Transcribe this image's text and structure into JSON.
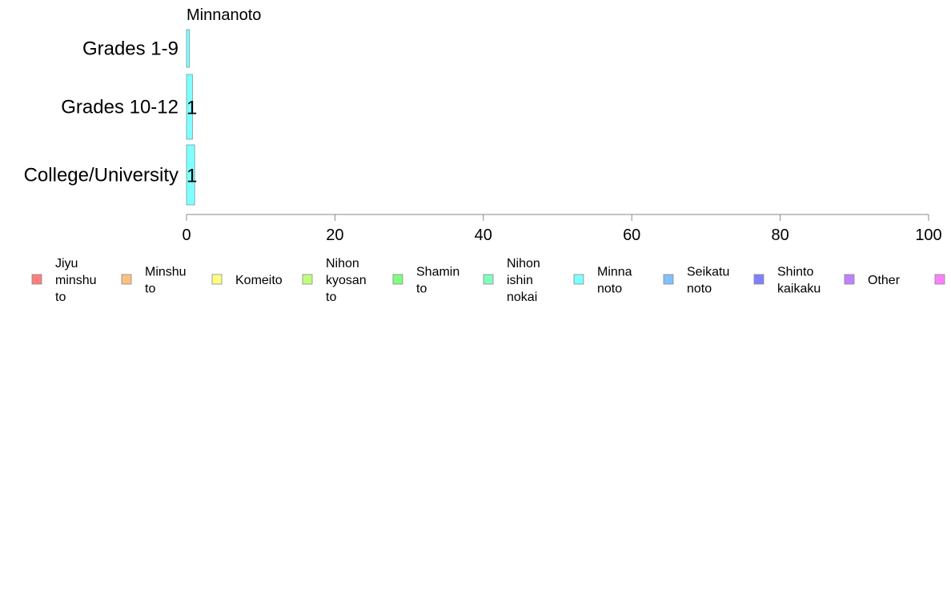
{
  "chart_data": {
    "type": "bar",
    "orientation": "horizontal",
    "stacked": true,
    "title": "Minnanoto",
    "categories": [
      "Grades 1-9",
      "Grades 10-12",
      "College/University"
    ],
    "series": [
      {
        "name": "Jiyu minshu to",
        "color": "#ff7f7f",
        "values": [
          0,
          0,
          0
        ]
      },
      {
        "name": "Minshu to",
        "color": "#ffc080",
        "values": [
          0,
          0,
          0
        ]
      },
      {
        "name": "Komeito",
        "color": "#ffff80",
        "values": [
          0,
          0,
          0
        ]
      },
      {
        "name": "Nihon kyosan to",
        "color": "#c0ff80",
        "values": [
          0,
          0,
          0
        ]
      },
      {
        "name": "Shamin to",
        "color": "#80ff80",
        "values": [
          0,
          0,
          0
        ]
      },
      {
        "name": "Nihon ishin nokai",
        "color": "#80ffc0",
        "values": [
          0,
          0,
          0
        ]
      },
      {
        "name": "Minna noto",
        "color": "#80ffff",
        "values": [
          0.4,
          0.8,
          1.1
        ]
      },
      {
        "name": "Seikatu noto",
        "color": "#80c0ff",
        "values": [
          0,
          0,
          0
        ]
      },
      {
        "name": "Shinto kaikaku",
        "color": "#8080ff",
        "values": [
          0,
          0,
          0
        ]
      },
      {
        "name": "Other",
        "color": "#c080ff",
        "values": [
          0,
          0,
          0
        ]
      },
      {
        "name": "",
        "color": "#ff80ff",
        "values": [
          0,
          0,
          0
        ]
      }
    ],
    "data_labels": [
      "",
      "1",
      "1"
    ],
    "xlim": [
      0,
      100
    ],
    "xticks": [
      0,
      20,
      40,
      60,
      80,
      100
    ],
    "xlabel": "",
    "ylabel": "",
    "grid": false,
    "legend_position": "bottom"
  }
}
